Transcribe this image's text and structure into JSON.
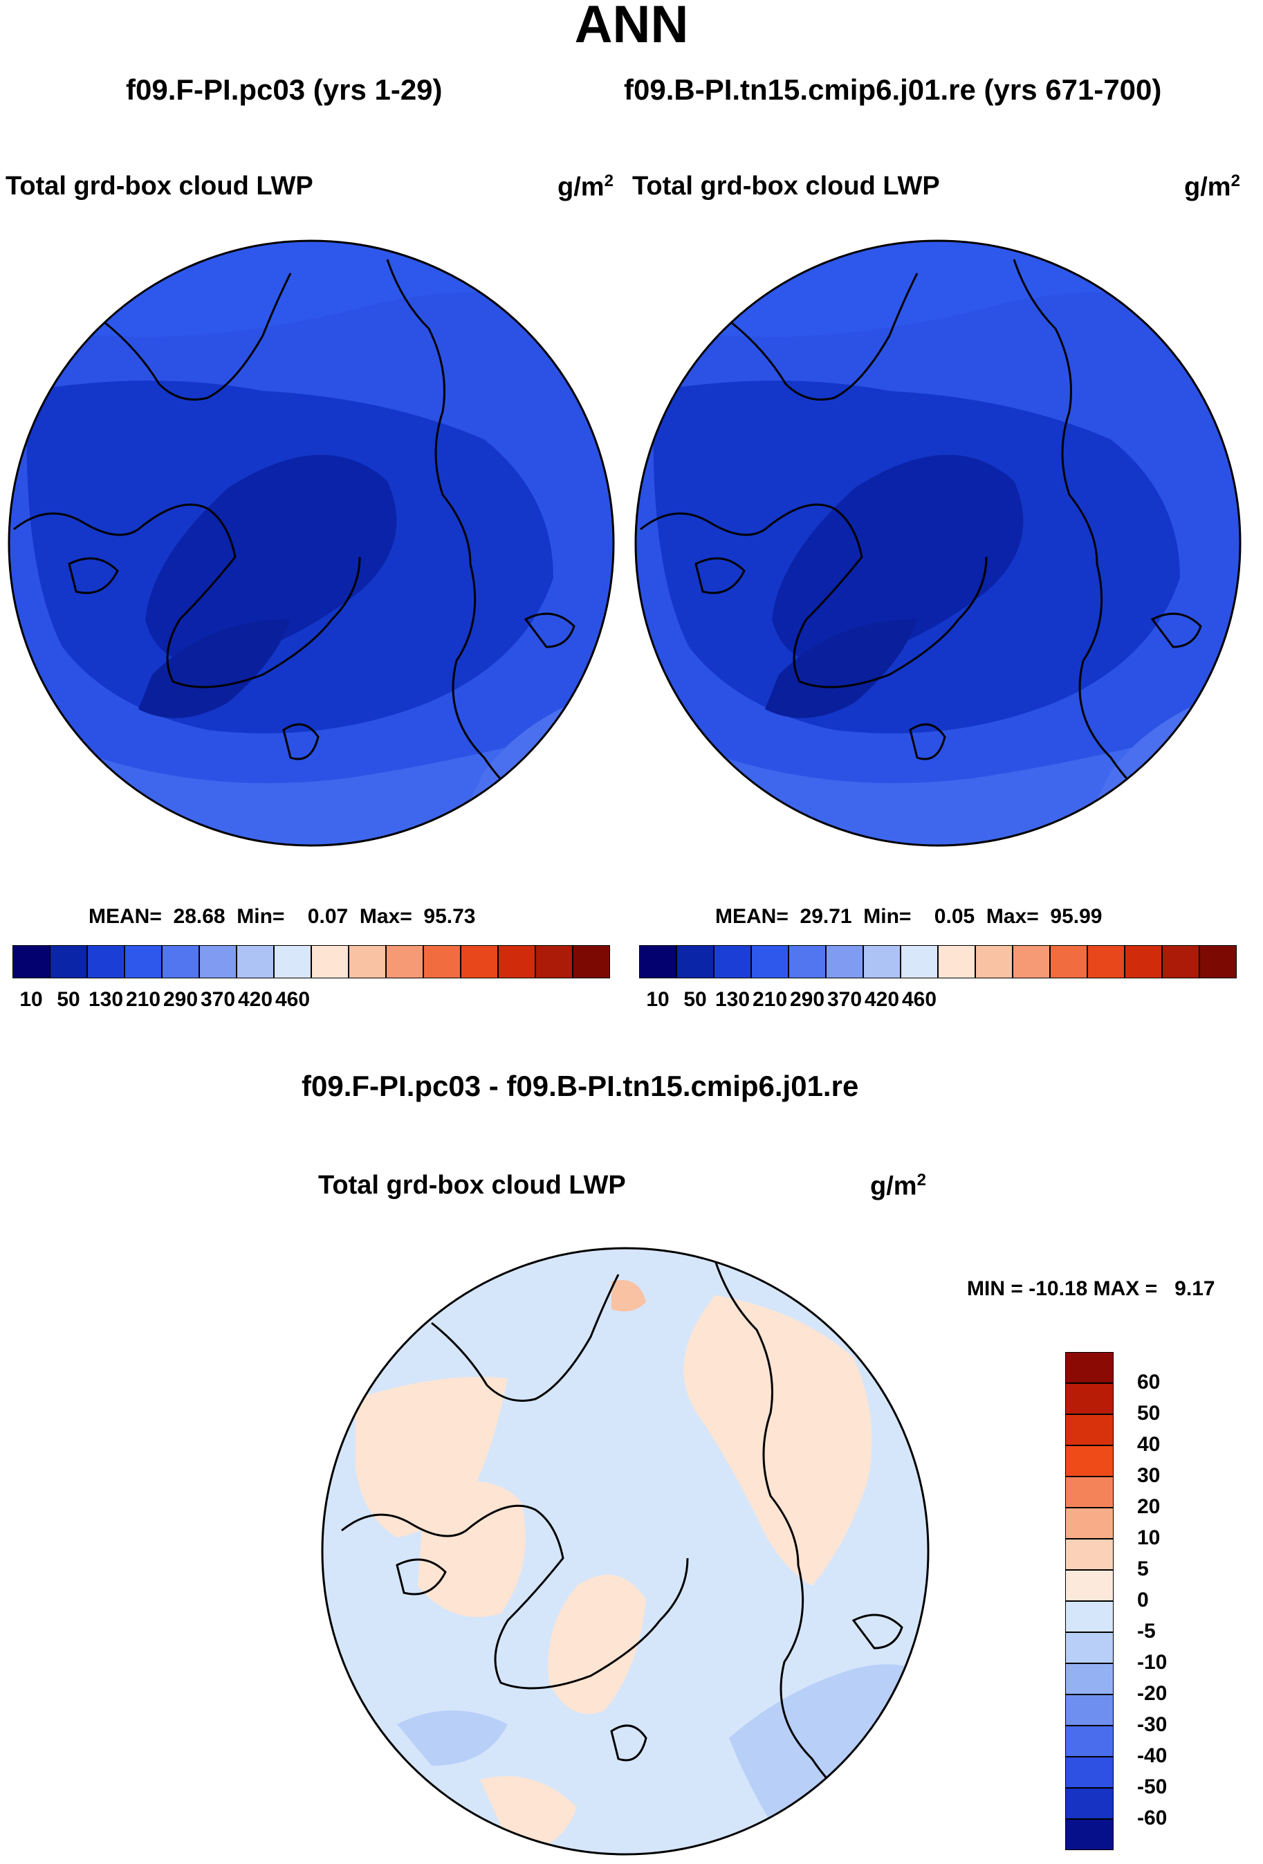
{
  "header": {
    "title": "ANN",
    "case_left": "f09.F-PI.pc03 (yrs 1-29)",
    "case_right": "f09.B-PI.tn15.cmip6.j01.re (yrs 671-700)"
  },
  "diff": {
    "title": "f09.F-PI.pc03 - f09.B-PI.tn15.cmip6.j01.re"
  },
  "chart_data": [
    {
      "type": "contour-map",
      "projection": "north-polar-stereographic",
      "title": "f09.F-PI.pc03 (yrs 1-29)",
      "variable": "Total grd-box cloud LWP",
      "units_base": "g/m",
      "units_exp": "2",
      "stats": {
        "mean_label": "MEAN=",
        "mean": "28.68",
        "min_label": "Min=",
        "min": "0.07",
        "max_label": "Max=",
        "max": "95.73"
      },
      "colorbar": {
        "levels": [
          10,
          50,
          130,
          210,
          290,
          370,
          420,
          460
        ],
        "tick_labels": [
          "10",
          "50",
          "130",
          "210",
          "290",
          "370",
          "420",
          "460"
        ],
        "colors": [
          "#03006f",
          "#0a25a8",
          "#1b3fd6",
          "#2e58ec",
          "#5275f0",
          "#7f9cf2",
          "#aec3f5",
          "#d9e7fb",
          "#fde4d3",
          "#f8c2a3",
          "#f59a74",
          "#f16c3f",
          "#e8471c",
          "#d02c0b",
          "#ab1b07",
          "#7d0a02"
        ]
      }
    },
    {
      "type": "contour-map",
      "projection": "north-polar-stereographic",
      "title": "f09.B-PI.tn15.cmip6.j01.re (yrs 671-700)",
      "variable": "Total grd-box cloud LWP",
      "units_base": "g/m",
      "units_exp": "2",
      "stats": {
        "mean_label": "MEAN=",
        "mean": "29.71",
        "min_label": "Min=",
        "min": "0.05",
        "max_label": "Max=",
        "max": "95.99"
      },
      "colorbar": {
        "levels": [
          10,
          50,
          130,
          210,
          290,
          370,
          420,
          460
        ],
        "tick_labels": [
          "10",
          "50",
          "130",
          "210",
          "290",
          "370",
          "420",
          "460"
        ],
        "colors": [
          "#03006f",
          "#0a25a8",
          "#1b3fd6",
          "#2e58ec",
          "#5275f0",
          "#7f9cf2",
          "#aec3f5",
          "#d9e7fb",
          "#fde4d3",
          "#f8c2a3",
          "#f59a74",
          "#f16c3f",
          "#e8471c",
          "#d02c0b",
          "#ab1b07",
          "#7d0a02"
        ]
      }
    },
    {
      "type": "contour-map",
      "projection": "north-polar-stereographic",
      "title": "f09.F-PI.pc03 - f09.B-PI.tn15.cmip6.j01.re",
      "variable": "Total grd-box cloud LWP",
      "units_base": "g/m",
      "units_exp": "2",
      "stats": {
        "min_label": "MIN =",
        "min": "-10.18",
        "max_label": "MAX =",
        "max": "9.17"
      },
      "colorbar": {
        "levels": [
          60,
          50,
          40,
          30,
          20,
          10,
          5,
          0,
          -5,
          -10,
          -20,
          -30,
          -40,
          -50,
          -60
        ],
        "tick_labels": [
          "60",
          "50",
          "40",
          "30",
          "20",
          "10",
          "5",
          "0",
          "-5",
          "-10",
          "-20",
          "-30",
          "-40",
          "-50",
          "-60"
        ],
        "colors_top_to_bottom": [
          "#8b0a03",
          "#b81c07",
          "#d8320c",
          "#ee4b19",
          "#f58359",
          "#f8ad88",
          "#fbd1b8",
          "#fde9db",
          "#d6e6fa",
          "#b8cff8",
          "#94b1f4",
          "#6e8ef0",
          "#4a6ded",
          "#2e50e3",
          "#1633c4",
          "#05108a"
        ]
      }
    }
  ]
}
